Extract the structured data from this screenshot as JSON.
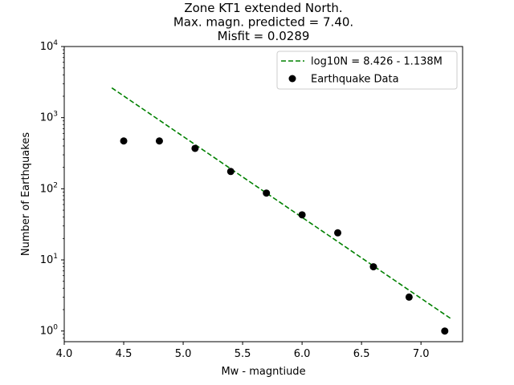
{
  "chart_data": {
    "type": "scatter",
    "title_lines": [
      "Zone KT1 extended North.",
      "Max. magn. predicted = 7.40.",
      "Misfit = 0.0289"
    ],
    "xlabel": "Mw - magntiude",
    "ylabel": "Number of Earthquakes",
    "xlim": [
      4.0,
      7.35
    ],
    "ylim_log10": [
      -0.15,
      4.0
    ],
    "yscale": "log",
    "x_ticks": [
      4.0,
      4.5,
      5.0,
      5.5,
      6.0,
      6.5,
      7.0
    ],
    "x_tick_labels": [
      "4.0",
      "4.5",
      "5.0",
      "5.5",
      "6.0",
      "6.5",
      "7.0"
    ],
    "y_ticks": [
      {
        "value": 1,
        "base": "10",
        "exp": "0"
      },
      {
        "value": 10,
        "base": "10",
        "exp": "1"
      },
      {
        "value": 100,
        "base": "10",
        "exp": "2"
      },
      {
        "value": 1000,
        "base": "10",
        "exp": "3"
      },
      {
        "value": 10000,
        "base": "10",
        "exp": "4"
      }
    ],
    "grid": false,
    "legend_position": "upper right",
    "series": [
      {
        "name": "log10N = 8.426 - 1.138M",
        "kind": "line",
        "style": "dashed",
        "color": "#008000",
        "intercept": 8.426,
        "slope": -1.138,
        "x_range": [
          4.4,
          7.25
        ]
      },
      {
        "name": "Earthquake Data",
        "kind": "scatter",
        "color": "#000000",
        "x": [
          4.5,
          4.8,
          5.1,
          5.4,
          5.7,
          6.0,
          6.3,
          6.6,
          6.9,
          7.2
        ],
        "y": [
          470,
          470,
          370,
          175,
          87,
          43,
          24,
          8,
          3,
          1
        ]
      }
    ]
  }
}
